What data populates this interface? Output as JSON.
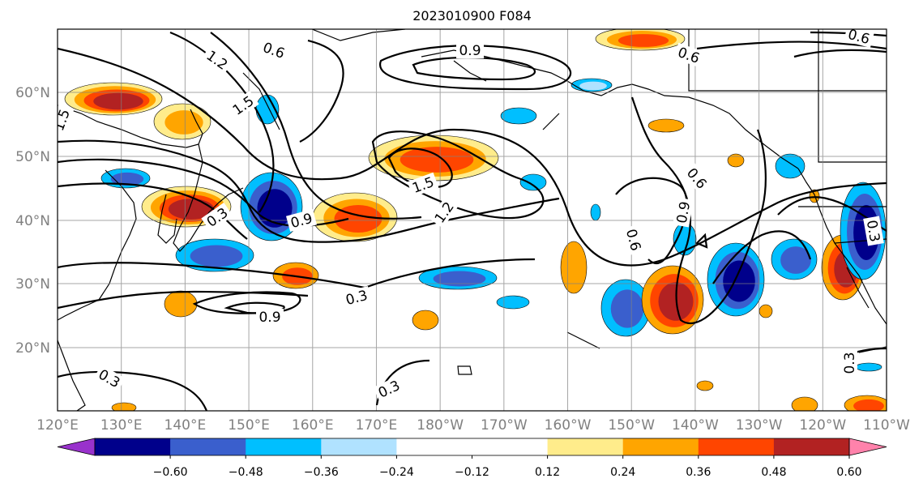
{
  "title": "2023010900 F084",
  "map": {
    "lon_range": [
      "120°E",
      "110°W"
    ],
    "lat_range": [
      "10°N",
      "70°N"
    ],
    "gridlines": true,
    "contour_color": "#000000",
    "coastline_color": "#000000"
  },
  "x_ticks": [
    "120°E",
    "130°E",
    "140°E",
    "150°E",
    "160°E",
    "170°E",
    "180°W",
    "170°W",
    "160°W",
    "150°W",
    "140°W",
    "130°W",
    "120°W",
    "110°W"
  ],
  "y_ticks": [
    "20°N",
    "30°N",
    "40°N",
    "50°N",
    "60°N"
  ],
  "colorbar": {
    "colors": [
      "#9932cc",
      "#00008b",
      "#3a5fcd",
      "#00bfff",
      "#b0e2ff",
      "#ffffff",
      "#ffffff",
      "#ffec8b",
      "#ffa500",
      "#ff4500",
      "#b22222",
      "#ff82ab"
    ],
    "labels": [
      "−0.60",
      "−0.48",
      "−0.36",
      "−0.24",
      "−0.12",
      "0.12",
      "0.24",
      "0.36",
      "0.48",
      "0.60"
    ],
    "extend": "both"
  },
  "contour_labels": [
    "0.6",
    "0.9",
    "0.6",
    "0.6",
    "1.2",
    "1.5",
    "1.5",
    "0.3",
    "0.9",
    "1.5",
    "1.2",
    "0.6",
    "0.9",
    "0.6",
    "0.3",
    "0.9",
    "0.3",
    "0.3",
    "0.3",
    "0.3"
  ]
}
